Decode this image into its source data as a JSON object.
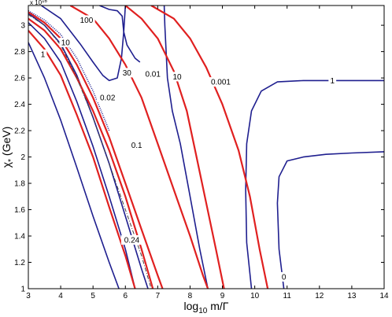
{
  "chart_data": {
    "type": "line",
    "xlabel_main": "log",
    "xlabel_sub": "10",
    "xlabel_tail": " m/Γ",
    "ylabel_main": "χ",
    "ylabel_sub": "*",
    "ylabel_tail": " (GeV)",
    "y_exponent_base": "x 10",
    "y_exponent_power": "16",
    "xlim": [
      3,
      14
    ],
    "ylim": [
      1,
      3.15
    ],
    "x_ticks": [
      3,
      4,
      5,
      6,
      7,
      8,
      9,
      10,
      11,
      12,
      13,
      14
    ],
    "y_ticks": [
      1,
      1.2,
      1.4,
      1.6,
      1.8,
      2,
      2.2,
      2.4,
      2.6,
      2.8,
      3
    ],
    "y_tick_labels": [
      "1",
      "1.2",
      "1.4",
      "1.6",
      "1.8",
      "2",
      "2.2",
      "2.4",
      "2.6",
      "2.8",
      "3"
    ],
    "grid": false,
    "colors": {
      "blue": "#1f1f8f",
      "red": "#e02020",
      "dashdot": "#444444"
    },
    "series": [
      {
        "color": "blue",
        "dash": "",
        "points": [
          [
            3.0,
            2.87
          ],
          [
            3.5,
            2.6
          ],
          [
            4.0,
            2.28
          ],
          [
            4.5,
            1.92
          ],
          [
            5.0,
            1.55
          ],
          [
            5.5,
            1.2
          ],
          [
            5.8,
            1.0
          ]
        ]
      },
      {
        "color": "blue",
        "dash": "",
        "points": [
          [
            3.0,
            3.02
          ],
          [
            3.5,
            2.9
          ],
          [
            4.0,
            2.72
          ],
          [
            4.5,
            2.42
          ],
          [
            5.0,
            2.08
          ],
          [
            5.5,
            1.7
          ],
          [
            6.0,
            1.3
          ],
          [
            6.3,
            1.0
          ]
        ]
      },
      {
        "color": "blue",
        "dash": "",
        "points": [
          [
            3.0,
            3.09
          ],
          [
            3.5,
            3.0
          ],
          [
            4.0,
            2.86
          ],
          [
            4.5,
            2.62
          ],
          [
            5.0,
            2.3
          ],
          [
            5.5,
            1.95
          ],
          [
            6.0,
            1.55
          ],
          [
            6.5,
            1.15
          ],
          [
            6.7,
            1.0
          ]
        ]
      },
      {
        "color": "blue",
        "dash": "",
        "points": [
          [
            3.4,
            3.15
          ],
          [
            4.0,
            3.05
          ],
          [
            4.6,
            2.86
          ],
          [
            5.0,
            2.72
          ],
          [
            5.3,
            2.62
          ],
          [
            5.5,
            2.58
          ],
          [
            5.75,
            2.6
          ],
          [
            5.88,
            2.75
          ],
          [
            5.95,
            2.95
          ],
          [
            6.0,
            3.15
          ]
        ]
      },
      {
        "color": "blue",
        "dash": "",
        "points": [
          [
            5.2,
            3.15
          ],
          [
            5.5,
            3.12
          ],
          [
            5.75,
            3.11
          ],
          [
            5.9,
            3.07
          ],
          [
            5.95,
            2.95
          ],
          [
            6.0,
            2.9
          ],
          [
            6.05,
            2.85
          ],
          [
            6.3,
            2.75
          ],
          [
            6.45,
            2.72
          ]
        ]
      },
      {
        "color": "blue",
        "dash": "",
        "points": [
          [
            7.2,
            3.15
          ],
          [
            7.22,
            3.0
          ],
          [
            7.3,
            2.6
          ],
          [
            7.45,
            2.35
          ],
          [
            7.7,
            2.1
          ],
          [
            8.0,
            1.7
          ],
          [
            8.3,
            1.3
          ],
          [
            8.55,
            1.0
          ]
        ]
      },
      {
        "color": "blue",
        "dash": "",
        "points": [
          [
            9.9,
            1.0
          ],
          [
            9.75,
            1.35
          ],
          [
            9.72,
            1.75
          ],
          [
            9.75,
            2.1
          ],
          [
            9.9,
            2.35
          ],
          [
            10.2,
            2.5
          ],
          [
            10.7,
            2.57
          ],
          [
            11.5,
            2.58
          ],
          [
            12.5,
            2.58
          ],
          [
            14.0,
            2.58
          ]
        ]
      },
      {
        "color": "blue",
        "dash": "",
        "points": [
          [
            10.9,
            1.0
          ],
          [
            10.75,
            1.3
          ],
          [
            10.7,
            1.65
          ],
          [
            10.75,
            1.85
          ],
          [
            11.0,
            1.97
          ],
          [
            11.5,
            2.0
          ],
          [
            12.2,
            2.02
          ],
          [
            13.0,
            2.03
          ],
          [
            14.0,
            2.04
          ]
        ]
      },
      {
        "color": "red",
        "dash": "",
        "points": [
          [
            3.0,
            2.96
          ],
          [
            3.5,
            2.82
          ],
          [
            4.0,
            2.62
          ],
          [
            4.5,
            2.32
          ],
          [
            5.0,
            2.0
          ],
          [
            5.5,
            1.62
          ],
          [
            6.0,
            1.25
          ],
          [
            6.3,
            1.0
          ]
        ]
      },
      {
        "color": "red",
        "dash": "",
        "points": [
          [
            3.0,
            3.05
          ],
          [
            3.5,
            2.96
          ],
          [
            4.0,
            2.82
          ],
          [
            4.5,
            2.6
          ],
          [
            5.0,
            2.35
          ],
          [
            5.5,
            2.05
          ],
          [
            6.0,
            1.7
          ],
          [
            6.5,
            1.3
          ],
          [
            6.85,
            1.0
          ]
        ]
      },
      {
        "color": "red",
        "dash": "",
        "points": [
          [
            3.0,
            3.1
          ],
          [
            3.5,
            3.02
          ],
          [
            4.0,
            2.9
          ],
          [
            4.5,
            2.7
          ],
          [
            5.0,
            2.45
          ],
          [
            5.5,
            2.15
          ],
          [
            6.0,
            1.8
          ],
          [
            6.5,
            1.45
          ],
          [
            7.0,
            1.1
          ],
          [
            7.15,
            1.0
          ]
        ]
      },
      {
        "color": "red",
        "dash": "",
        "points": [
          [
            4.3,
            3.15
          ],
          [
            5.0,
            3.05
          ],
          [
            5.5,
            2.9
          ],
          [
            6.0,
            2.7
          ],
          [
            6.5,
            2.45
          ],
          [
            7.0,
            2.1
          ],
          [
            7.5,
            1.75
          ],
          [
            8.0,
            1.4
          ],
          [
            8.4,
            1.1
          ],
          [
            8.55,
            1.0
          ]
        ]
      },
      {
        "color": "red",
        "dash": "",
        "points": [
          [
            6.0,
            3.15
          ],
          [
            6.5,
            3.05
          ],
          [
            7.0,
            2.9
          ],
          [
            7.5,
            2.65
          ],
          [
            7.9,
            2.35
          ],
          [
            8.2,
            2.0
          ],
          [
            8.5,
            1.65
          ],
          [
            8.8,
            1.3
          ],
          [
            9.05,
            1.0
          ]
        ]
      },
      {
        "color": "red",
        "dash": "",
        "points": [
          [
            6.8,
            3.15
          ],
          [
            7.5,
            3.05
          ],
          [
            8.0,
            2.9
          ],
          [
            8.5,
            2.68
          ],
          [
            9.0,
            2.4
          ],
          [
            9.5,
            2.05
          ],
          [
            9.85,
            1.7
          ],
          [
            10.15,
            1.3
          ],
          [
            10.4,
            1.0
          ]
        ]
      },
      {
        "color": "dashdot",
        "dash": "5,2,1,2",
        "points": [
          [
            3.0,
            3.08
          ],
          [
            3.5,
            3.0
          ],
          [
            4.0,
            2.85
          ],
          [
            4.5,
            2.6
          ],
          [
            5.0,
            2.3
          ],
          [
            5.5,
            1.95
          ],
          [
            6.0,
            1.6
          ],
          [
            6.5,
            1.25
          ],
          [
            6.8,
            1.0
          ]
        ]
      },
      {
        "color": "blue",
        "dash": "1,1.5",
        "points": [
          [
            3.0,
            3.11
          ],
          [
            3.5,
            3.04
          ],
          [
            4.0,
            2.93
          ],
          [
            4.5,
            2.75
          ],
          [
            5.0,
            2.5
          ],
          [
            5.5,
            2.2
          ]
        ]
      }
    ],
    "annotations": [
      {
        "text": "1",
        "x": 3.45,
        "y": 2.78
      },
      {
        "text": "10",
        "x": 4.15,
        "y": 2.87
      },
      {
        "text": "100",
        "x": 4.8,
        "y": 3.04
      },
      {
        "text": "30",
        "x": 6.05,
        "y": 2.64
      },
      {
        "text": "0.01",
        "x": 6.85,
        "y": 2.63
      },
      {
        "text": "10",
        "x": 7.6,
        "y": 2.61
      },
      {
        "text": "0.001",
        "x": 8.95,
        "y": 2.57
      },
      {
        "text": "0.02",
        "x": 5.45,
        "y": 2.45
      },
      {
        "text": "0.1",
        "x": 6.35,
        "y": 2.09
      },
      {
        "text": "0.24",
        "x": 6.2,
        "y": 1.37
      },
      {
        "text": "1",
        "x": 12.4,
        "y": 2.58
      },
      {
        "text": "0",
        "x": 10.9,
        "y": 1.09
      }
    ]
  }
}
